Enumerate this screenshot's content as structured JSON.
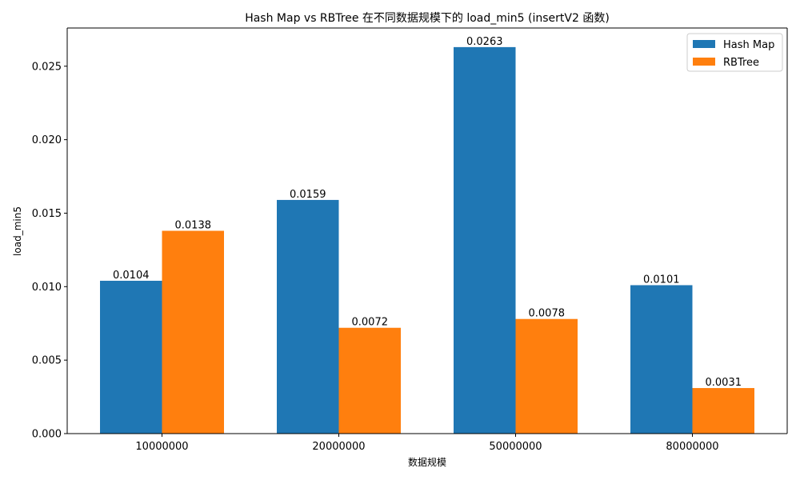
{
  "chart_data": {
    "type": "bar",
    "title": "Hash Map vs RBTree 在不同数据规模下的 load_min5 (insertV2 函数)",
    "xlabel": "数据规模",
    "ylabel": "load_min5",
    "categories": [
      "10000000",
      "20000000",
      "50000000",
      "80000000"
    ],
    "series": [
      {
        "name": "Hash Map",
        "color": "#1f77b4",
        "values": [
          0.0104,
          0.0159,
          0.0263,
          0.0101
        ],
        "labels": [
          "0.0104",
          "0.0159",
          "0.0263",
          "0.0101"
        ]
      },
      {
        "name": "RBTree",
        "color": "#ff7f0e",
        "values": [
          0.0138,
          0.0072,
          0.0078,
          0.0031
        ],
        "labels": [
          "0.0138",
          "0.0072",
          "0.0078",
          "0.0031"
        ]
      }
    ],
    "ylim": [
      0,
      0.0276
    ],
    "yticks": [
      0,
      0.005,
      0.01,
      0.015,
      0.02,
      0.025
    ],
    "ytick_labels": [
      "0.000",
      "0.005",
      "0.010",
      "0.015",
      "0.020",
      "0.025"
    ],
    "legend": "top-right",
    "grid": false
  }
}
